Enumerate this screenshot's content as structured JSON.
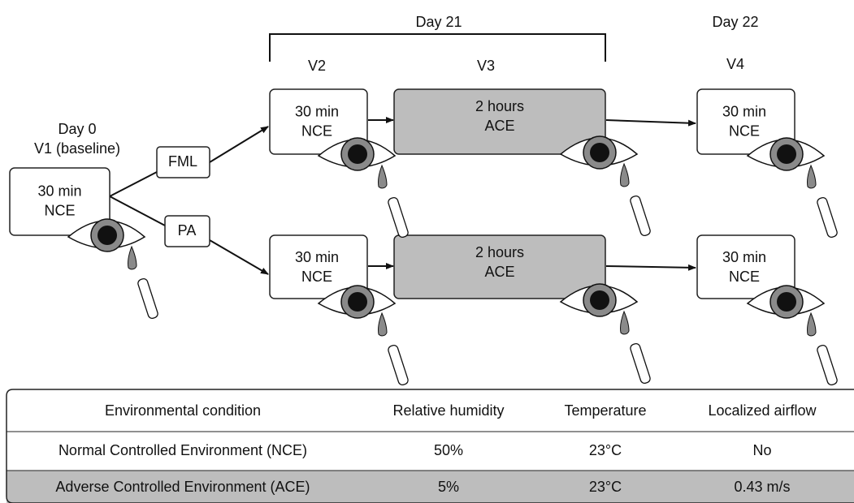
{
  "timepoints": {
    "day0": "Day 0",
    "v1": "V1 (baseline)",
    "day21": "Day 21",
    "v2": "V2",
    "v3": "V3",
    "day22": "Day 22",
    "v4": "V4"
  },
  "treatments": {
    "fml": "FML",
    "pa": "PA"
  },
  "boxes": {
    "v1": [
      "30 min",
      "NCE"
    ],
    "top_v2": [
      "30 min",
      "NCE"
    ],
    "top_v3": [
      "2 hours",
      "ACE"
    ],
    "top_v4": [
      "30 min",
      "NCE"
    ],
    "bottom_v2": [
      "30 min",
      "NCE"
    ],
    "bottom_v3": [
      "2 hours",
      "ACE"
    ],
    "bottom_v4": [
      "30 min",
      "NCE"
    ]
  },
  "table": {
    "header": [
      "Environmental condition",
      "Relative humidity",
      "Temperature",
      "Localized airflow"
    ],
    "rows": [
      [
        "Normal Controlled Environment (NCE)",
        "50%",
        "23°C",
        "No"
      ],
      [
        "Adverse Controlled Environment (ACE)",
        "5%",
        "23°C",
        "0.43 m/s"
      ]
    ]
  }
}
